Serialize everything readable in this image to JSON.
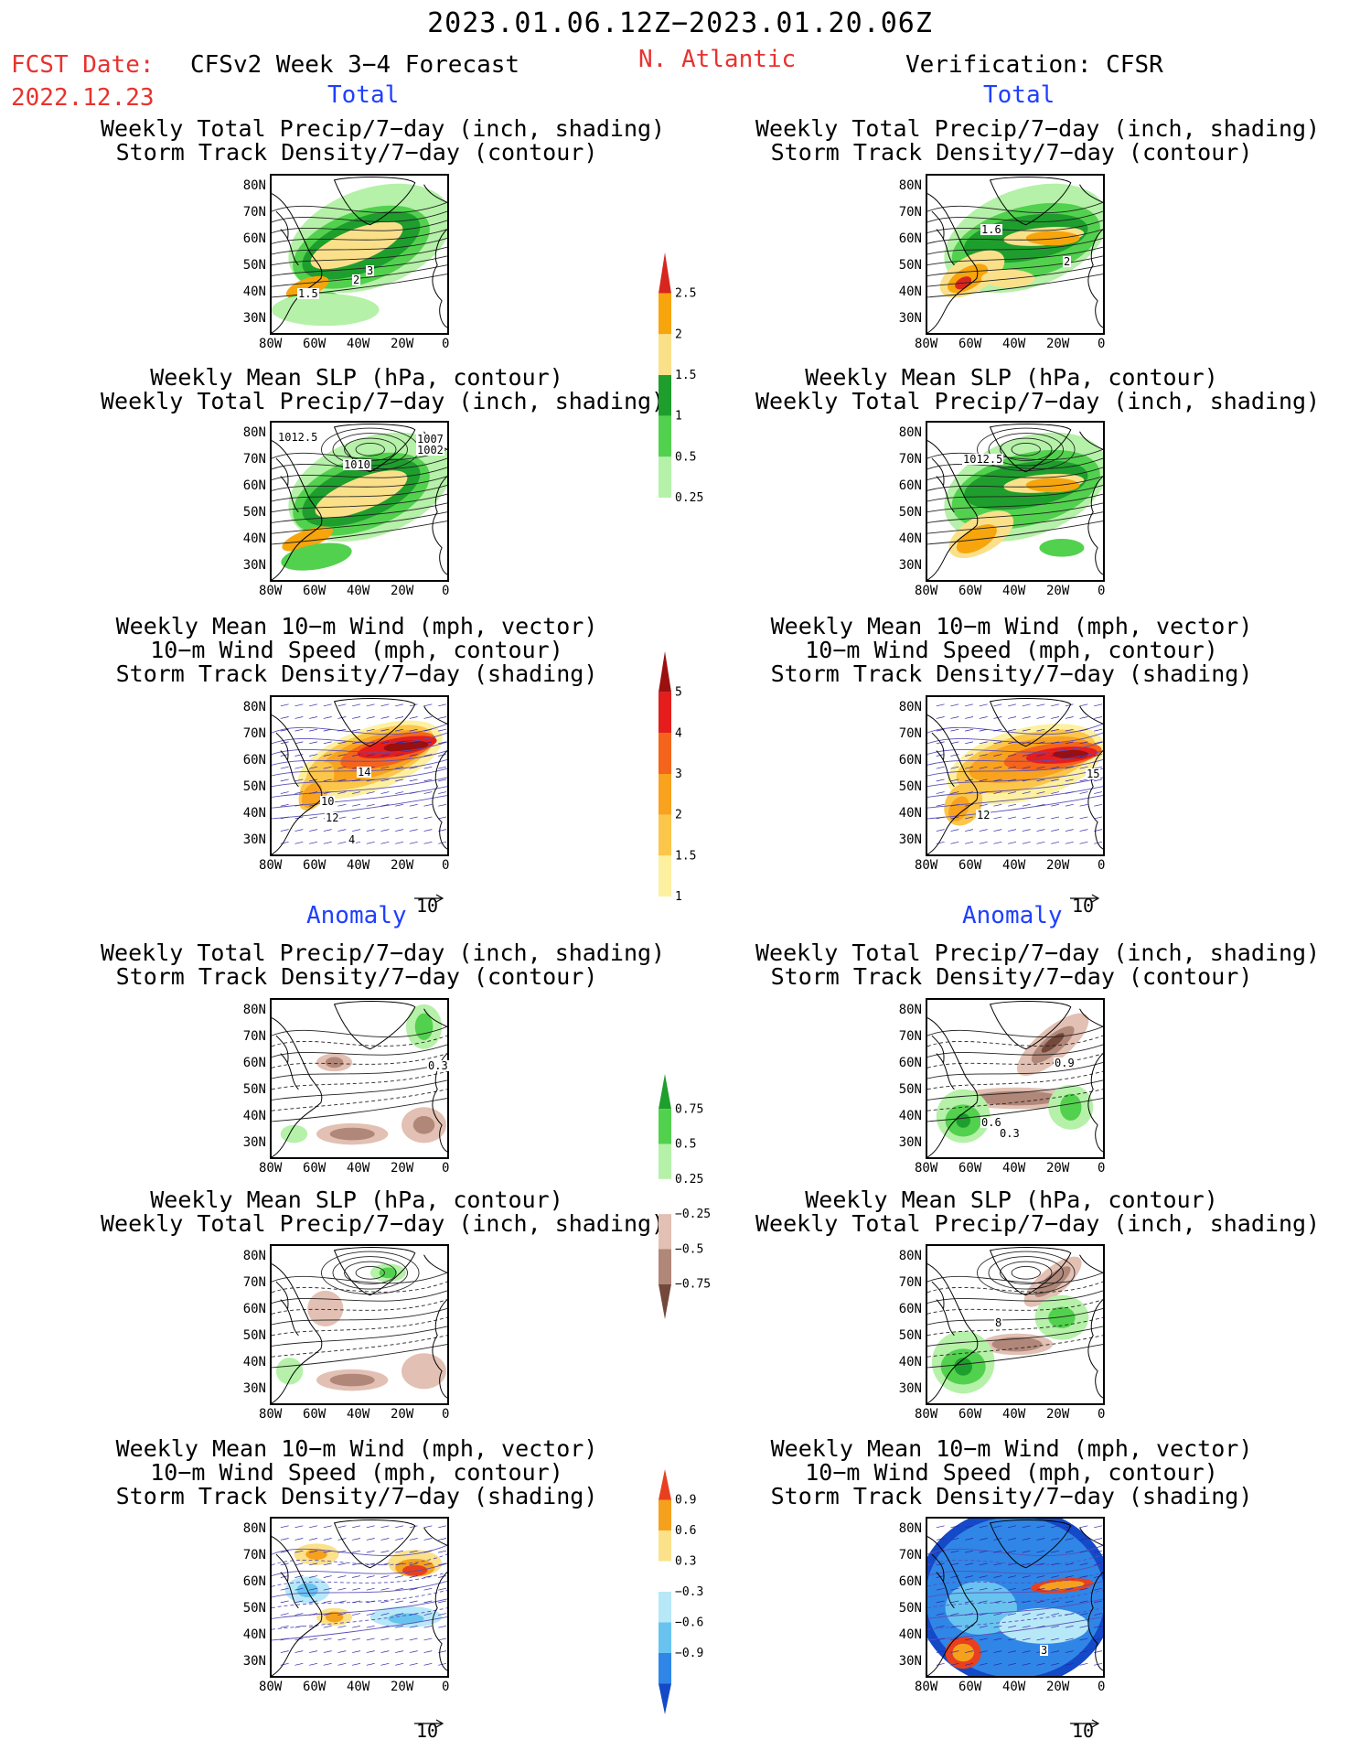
{
  "header": {
    "date_range": "2023.01.06.12Z−2023.01.20.06Z",
    "fcst_label": "FCST Date:",
    "fcst_date": "2022.12.23",
    "model": "CFSv2 Week 3−4 Forecast",
    "region": "N. Atlantic",
    "verification": "Verification: CFSR"
  },
  "sections": {
    "total": "Total",
    "anomaly": "Anomaly"
  },
  "titles": {
    "precip_track": [
      "Weekly Total Precip/7−day (inch, shading)",
      "Storm Track Density/7−day (contour)"
    ],
    "slp_precip": [
      "Weekly Mean SLP (hPa, contour)",
      "Weekly Total Precip/7−day (inch, shading)"
    ],
    "wind": [
      "Weekly Mean 10−m Wind (mph, vector)",
      "10−m Wind Speed (mph, contour)",
      "Storm Track Density/7−day (shading)"
    ]
  },
  "axes": {
    "lat_ticks": [
      "80N",
      "70N",
      "60N",
      "50N",
      "40N",
      "30N"
    ],
    "lon_ticks": [
      "80W",
      "60W",
      "40W",
      "20W",
      "0"
    ]
  },
  "vector_reference": "10",
  "contour_labels": {
    "fcst_precip_track": [
      "1.5",
      "2",
      "3"
    ],
    "verif_precip_track": [
      "1.6",
      "2"
    ],
    "fcst_slp": [
      "1012.5",
      "1010",
      "1007",
      "1002"
    ],
    "verif_slp": [
      "1012.5"
    ],
    "fcst_wind": [
      "14",
      "10",
      "12",
      "4"
    ],
    "verif_wind": [
      "15",
      "12"
    ],
    "fcst_anom_precip": [
      "0.3"
    ],
    "verif_anom_precip": [
      "0.9",
      "0.6",
      "0.3"
    ],
    "verif_anom_slp": [
      "8"
    ],
    "verif_anom_wind": [
      "3"
    ]
  },
  "colorbars": {
    "precip_total": {
      "labels": [
        "2.5",
        "2",
        "1.5",
        "1",
        "0.5",
        "0.25"
      ],
      "colors": [
        "#d7261e",
        "#f7a50c",
        "#fbe08a",
        "#1e9e2d",
        "#52d14e",
        "#b5f1a8"
      ]
    },
    "track_total": {
      "labels": [
        "5",
        "4",
        "3",
        "2",
        "1.5",
        "1"
      ],
      "colors": [
        "#9c0f0f",
        "#e51d1d",
        "#f4641b",
        "#f8a21e",
        "#fbc64a",
        "#fdf0a0"
      ]
    },
    "precip_anom": {
      "labels": [
        "0.75",
        "0.5",
        "0.25",
        "−0.25",
        "−0.5",
        "−0.75"
      ],
      "colors": [
        "#1e9e2d",
        "#52d14e",
        "#b5f1a8",
        "#ffffff",
        "#e2c0b3",
        "#b08779",
        "#74483a"
      ]
    },
    "track_anom": {
      "labels": [
        "0.9",
        "0.6",
        "0.3",
        "−0.3",
        "−0.6",
        "−0.9"
      ],
      "colors": [
        "#e8401e",
        "#f5a11d",
        "#fbe18a",
        "#ffffff",
        "#b7e8f8",
        "#68c4ef",
        "#2f86e6",
        "#1449c8"
      ]
    }
  }
}
